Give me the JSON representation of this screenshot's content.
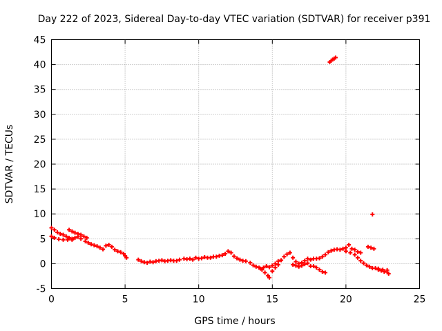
{
  "chart_data": {
    "type": "scatter",
    "title": "Day 222 of 2023, Sidereal Day-to-day VTEC variation (SDTVAR) for receiver p391",
    "xlabel": "GPS time / hours",
    "ylabel": "SDTVAR / TECUs",
    "xlim": [
      0,
      25
    ],
    "ylim": [
      -5,
      45
    ],
    "xticks": [
      0,
      5,
      10,
      15,
      20,
      25
    ],
    "yticks": [
      -5,
      0,
      5,
      10,
      15,
      20,
      25,
      30,
      35,
      40,
      45
    ],
    "grid": true,
    "marker": "plus",
    "series": [
      {
        "name": "SDTVAR",
        "color": "#ff0000",
        "points": [
          [
            0.0,
            7.2
          ],
          [
            0.2,
            6.8
          ],
          [
            0.4,
            6.3
          ],
          [
            0.6,
            6.0
          ],
          [
            0.8,
            5.8
          ],
          [
            1.0,
            5.5
          ],
          [
            1.2,
            5.2
          ],
          [
            1.4,
            5.0
          ],
          [
            0.0,
            5.5
          ],
          [
            0.2,
            5.2
          ],
          [
            0.5,
            4.9
          ],
          [
            0.8,
            4.8
          ],
          [
            1.1,
            4.8
          ],
          [
            1.4,
            4.8
          ],
          [
            1.6,
            5.2
          ],
          [
            1.8,
            5.4
          ],
          [
            1.2,
            6.8
          ],
          [
            1.4,
            6.5
          ],
          [
            1.6,
            6.2
          ],
          [
            1.8,
            6.0
          ],
          [
            2.0,
            5.8
          ],
          [
            2.2,
            5.5
          ],
          [
            2.4,
            5.2
          ],
          [
            2.0,
            5.0
          ],
          [
            2.3,
            4.5
          ],
          [
            2.5,
            4.2
          ],
          [
            2.7,
            3.9
          ],
          [
            2.9,
            3.7
          ],
          [
            3.1,
            3.5
          ],
          [
            3.3,
            3.2
          ],
          [
            3.5,
            2.9
          ],
          [
            3.7,
            3.6
          ],
          [
            3.9,
            3.8
          ],
          [
            4.1,
            3.4
          ],
          [
            4.3,
            2.8
          ],
          [
            4.5,
            2.5
          ],
          [
            4.7,
            2.3
          ],
          [
            4.9,
            2.0
          ],
          [
            5.0,
            1.6
          ],
          [
            5.1,
            1.2
          ],
          [
            5.9,
            0.8
          ],
          [
            6.1,
            0.5
          ],
          [
            6.3,
            0.3
          ],
          [
            6.5,
            0.2
          ],
          [
            6.7,
            0.4
          ],
          [
            6.9,
            0.3
          ],
          [
            7.1,
            0.5
          ],
          [
            7.3,
            0.6
          ],
          [
            7.5,
            0.7
          ],
          [
            7.7,
            0.5
          ],
          [
            7.9,
            0.6
          ],
          [
            8.1,
            0.7
          ],
          [
            8.3,
            0.6
          ],
          [
            8.5,
            0.6
          ],
          [
            8.7,
            0.8
          ],
          [
            9.0,
            1.0
          ],
          [
            9.2,
            0.9
          ],
          [
            9.4,
            1.0
          ],
          [
            9.6,
            0.8
          ],
          [
            9.8,
            1.2
          ],
          [
            10.0,
            1.0
          ],
          [
            10.2,
            1.1
          ],
          [
            10.4,
            1.3
          ],
          [
            10.6,
            1.2
          ],
          [
            10.8,
            1.2
          ],
          [
            11.0,
            1.4
          ],
          [
            11.2,
            1.4
          ],
          [
            11.4,
            1.6
          ],
          [
            11.6,
            1.7
          ],
          [
            11.8,
            2.0
          ],
          [
            12.0,
            2.5
          ],
          [
            12.2,
            2.2
          ],
          [
            12.4,
            1.5
          ],
          [
            12.6,
            1.1
          ],
          [
            12.8,
            0.8
          ],
          [
            13.0,
            0.6
          ],
          [
            13.2,
            0.5
          ],
          [
            13.5,
            0.2
          ],
          [
            13.7,
            -0.3
          ],
          [
            13.9,
            -0.6
          ],
          [
            14.1,
            -0.8
          ],
          [
            14.3,
            -1.2
          ],
          [
            14.5,
            -1.8
          ],
          [
            14.7,
            -2.4
          ],
          [
            14.8,
            -2.8
          ],
          [
            14.2,
            -1.0
          ],
          [
            14.4,
            -0.8
          ],
          [
            14.6,
            -0.5
          ],
          [
            14.8,
            -0.7
          ],
          [
            15.0,
            -0.4
          ],
          [
            15.2,
            0.0
          ],
          [
            15.4,
            0.5
          ],
          [
            15.0,
            -1.5
          ],
          [
            15.2,
            -0.8
          ],
          [
            15.4,
            -0.2
          ],
          [
            15.6,
            0.7
          ],
          [
            15.8,
            1.4
          ],
          [
            16.0,
            1.9
          ],
          [
            16.2,
            2.2
          ],
          [
            16.4,
            1.2
          ],
          [
            16.6,
            0.4
          ],
          [
            16.8,
            0.0
          ],
          [
            17.0,
            0.2
          ],
          [
            17.2,
            0.6
          ],
          [
            17.4,
            1.0
          ],
          [
            17.6,
            0.8
          ],
          [
            17.8,
            1.0
          ],
          [
            16.4,
            -0.2
          ],
          [
            16.6,
            -0.4
          ],
          [
            16.8,
            -0.6
          ],
          [
            17.0,
            -0.4
          ],
          [
            17.2,
            -0.1
          ],
          [
            17.4,
            0.1
          ],
          [
            17.6,
            -0.5
          ],
          [
            17.8,
            -0.5
          ],
          [
            18.0,
            -0.8
          ],
          [
            18.2,
            -1.2
          ],
          [
            18.4,
            -1.6
          ],
          [
            18.6,
            -1.8
          ],
          [
            18.0,
            1.0
          ],
          [
            18.2,
            1.1
          ],
          [
            18.4,
            1.4
          ],
          [
            18.6,
            1.8
          ],
          [
            18.8,
            2.3
          ],
          [
            19.0,
            2.6
          ],
          [
            19.2,
            2.8
          ],
          [
            19.4,
            2.9
          ],
          [
            19.6,
            2.8
          ],
          [
            19.8,
            3.0
          ],
          [
            20.0,
            3.2
          ],
          [
            20.2,
            3.8
          ],
          [
            20.4,
            3.0
          ],
          [
            20.6,
            2.8
          ],
          [
            20.8,
            2.4
          ],
          [
            21.0,
            2.2
          ],
          [
            20.0,
            2.5
          ],
          [
            20.3,
            2.2
          ],
          [
            20.6,
            1.8
          ],
          [
            20.8,
            1.2
          ],
          [
            21.0,
            0.6
          ],
          [
            21.2,
            0.1
          ],
          [
            21.4,
            -0.3
          ],
          [
            21.6,
            -0.6
          ],
          [
            21.8,
            -0.9
          ],
          [
            21.5,
            3.4
          ],
          [
            21.7,
            3.2
          ],
          [
            21.9,
            3.0
          ],
          [
            22.0,
            -0.9
          ],
          [
            22.2,
            -1.2
          ],
          [
            22.4,
            -1.4
          ],
          [
            22.6,
            -1.6
          ],
          [
            22.8,
            -1.7
          ],
          [
            22.9,
            -2.0
          ],
          [
            22.2,
            -1.0
          ],
          [
            22.5,
            -1.2
          ],
          [
            22.8,
            -1.3
          ],
          [
            18.9,
            40.5
          ],
          [
            19.0,
            40.8
          ],
          [
            19.1,
            41.0
          ],
          [
            19.2,
            41.2
          ],
          [
            19.3,
            41.4
          ],
          [
            21.8,
            9.9
          ]
        ]
      }
    ]
  }
}
